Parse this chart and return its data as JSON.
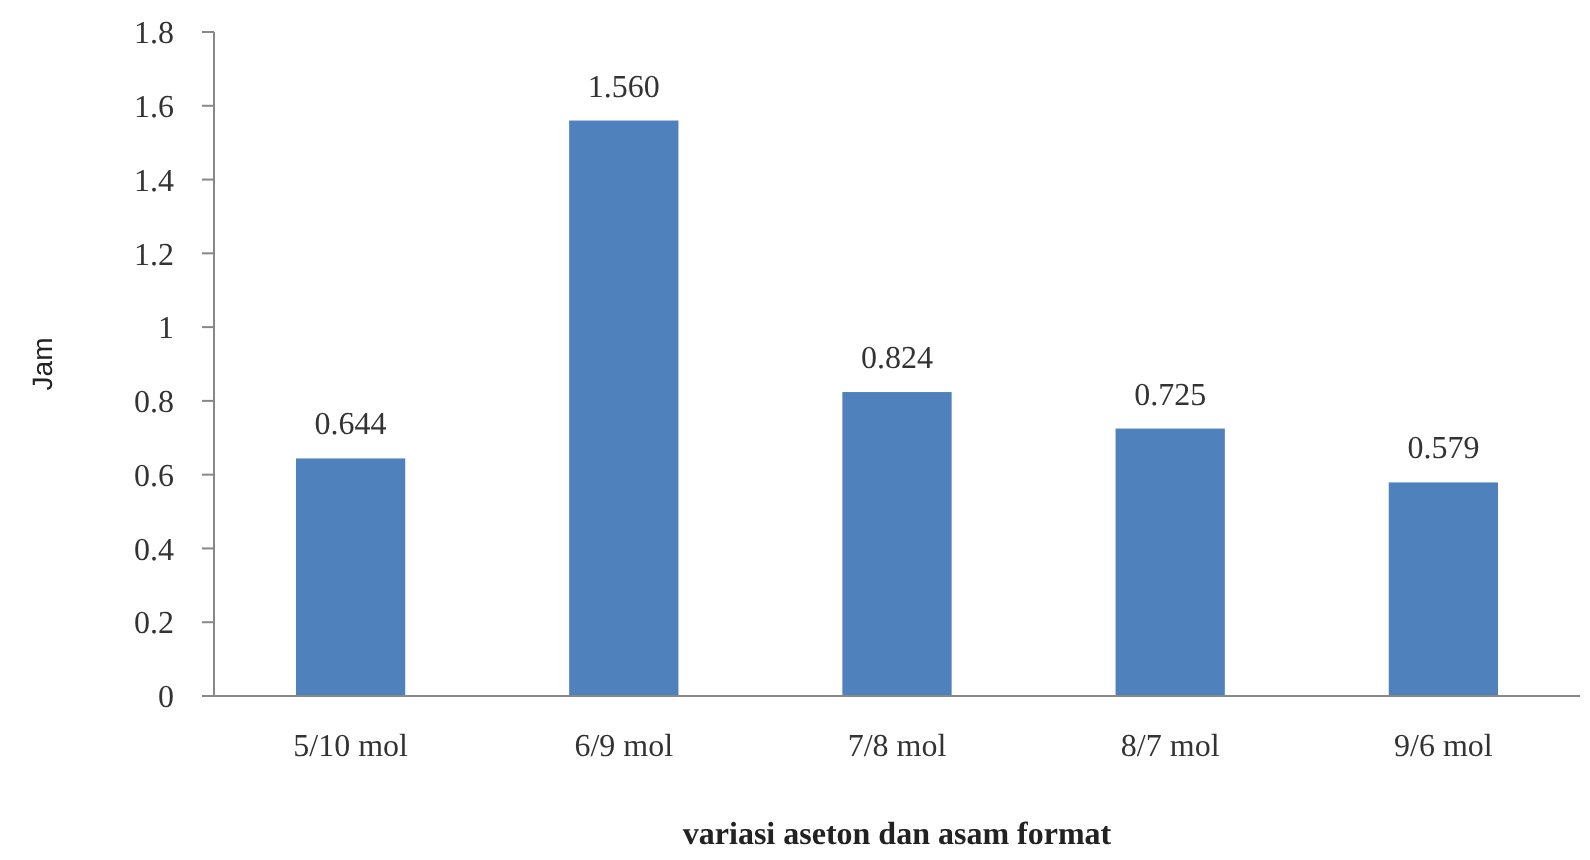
{
  "chart_data": {
    "type": "bar",
    "xlabel": "variasi aseton dan asam format",
    "ylabel": "Jam",
    "categories": [
      "5/10 mol",
      "6/9 mol",
      "7/8 mol",
      "8/7 mol",
      "9/6 mol"
    ],
    "values": [
      0.644,
      1.56,
      0.824,
      0.725,
      0.579
    ],
    "value_labels": [
      "0.644",
      "1.560",
      "0.824",
      "0.725",
      "0.579"
    ],
    "color": "#4f81bd",
    "ylim": [
      0,
      1.8
    ],
    "yticks": [
      0,
      0.2,
      0.4,
      0.6,
      0.8,
      1,
      1.2,
      1.4,
      1.6,
      1.8
    ]
  }
}
